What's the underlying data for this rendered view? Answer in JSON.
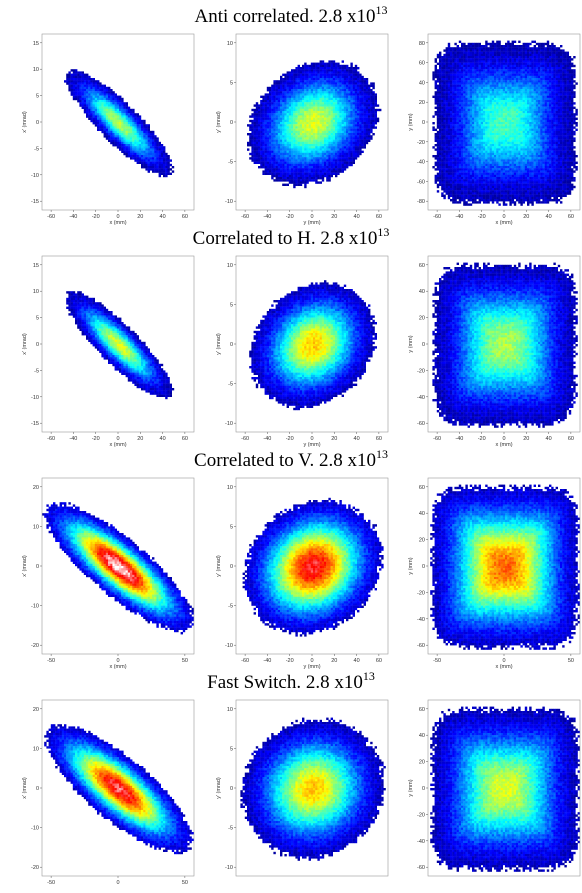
{
  "chart_data": [
    {
      "type": "heatmap",
      "title": "Anti correlated. 2.8 x10",
      "title_exp": "13",
      "panels": [
        {
          "xlabel": "x (mm)",
          "ylabel": "x' (mrad)",
          "xticks": [
            "-60",
            "-40",
            "-20",
            "0",
            "20",
            "40",
            "60"
          ],
          "yticks": [
            "15",
            "10",
            "5",
            "0",
            "-5",
            "-10",
            "-15"
          ],
          "xlim": [
            -65,
            65
          ],
          "ylim": [
            -17,
            17
          ],
          "shape": {
            "cx": 0,
            "cy": 0,
            "ax": 62,
            "ay": 7,
            "angle_deg": -45,
            "square": false
          },
          "peak_level": 0.55
        },
        {
          "xlabel": "y (mm)",
          "ylabel": "y' (mrad)",
          "xticks": [
            "-60",
            "-40",
            "-20",
            "0",
            "20",
            "40",
            "60"
          ],
          "yticks": [
            "10",
            "5",
            "0",
            "-5",
            "-10"
          ],
          "xlim": [
            -70,
            70
          ],
          "ylim": [
            -11,
            11
          ],
          "shape": {
            "cx": 0,
            "cy": 0,
            "ax": 60,
            "ay": 20,
            "angle_deg": 40,
            "square": false
          },
          "peak_level": 0.6
        },
        {
          "xlabel": "x (mm)",
          "ylabel": "y (mm)",
          "xticks": [
            "-60",
            "-40",
            "-20",
            "0",
            "20",
            "40",
            "60"
          ],
          "yticks": [
            "80",
            "60",
            "40",
            "20",
            "0",
            "-20",
            "-40",
            "-60",
            "-80"
          ],
          "xlim": [
            -65,
            65
          ],
          "ylim": [
            -82,
            82
          ],
          "shape": {
            "cx": 0,
            "cy": 0,
            "ax": 60,
            "ay": 62,
            "angle_deg": 0,
            "square": true
          },
          "peak_level": 0.45
        }
      ]
    },
    {
      "type": "heatmap",
      "title": "Correlated to H.  2.8 x10",
      "title_exp": "13",
      "panels": [
        {
          "xlabel": "x (mm)",
          "ylabel": "x' (mrad)",
          "xticks": [
            "-60",
            "-40",
            "-20",
            "0",
            "20",
            "40",
            "60"
          ],
          "yticks": [
            "15",
            "10",
            "5",
            "0",
            "-5",
            "-10",
            "-15"
          ],
          "xlim": [
            -65,
            65
          ],
          "ylim": [
            -17,
            17
          ],
          "shape": {
            "cx": 0,
            "cy": 0,
            "ax": 62,
            "ay": 7,
            "angle_deg": -45,
            "square": false
          },
          "peak_level": 0.6
        },
        {
          "xlabel": "y (mm)",
          "ylabel": "y' (mrad)",
          "xticks": [
            "-60",
            "-40",
            "-20",
            "0",
            "20",
            "40",
            "60"
          ],
          "yticks": [
            "10",
            "5",
            "0",
            "-5",
            "-10"
          ],
          "xlim": [
            -70,
            70
          ],
          "ylim": [
            -11,
            11
          ],
          "shape": {
            "cx": 0,
            "cy": 0,
            "ax": 58,
            "ay": 20,
            "angle_deg": 45,
            "square": false
          },
          "peak_level": 0.68
        },
        {
          "xlabel": "x (mm)",
          "ylabel": "y (mm)",
          "xticks": [
            "-60",
            "-40",
            "-20",
            "0",
            "20",
            "40",
            "60"
          ],
          "yticks": [
            "60",
            "40",
            "20",
            "0",
            "-20",
            "-40",
            "-60"
          ],
          "xlim": [
            -65,
            65
          ],
          "ylim": [
            -68,
            68
          ],
          "shape": {
            "cx": 0,
            "cy": 0,
            "ax": 60,
            "ay": 62,
            "angle_deg": 0,
            "square": true
          },
          "peak_level": 0.55
        }
      ]
    },
    {
      "type": "heatmap",
      "title": "Correlated to V. 2.8 x10",
      "title_exp": "13",
      "panels": [
        {
          "xlabel": "x (mm)",
          "ylabel": "x' (mrad)",
          "xticks": [
            "-50",
            "0",
            "50"
          ],
          "yticks": [
            "20",
            "10",
            "0",
            "-10",
            "-20"
          ],
          "xlim": [
            -90,
            90
          ],
          "ylim": [
            -24,
            24
          ],
          "shape": {
            "cx": 0,
            "cy": 0,
            "ax": 80,
            "ay": 10,
            "angle_deg": -40,
            "square": false
          },
          "peak_level": 1.0
        },
        {
          "xlabel": "y (mm)",
          "ylabel": "y' (mrad)",
          "xticks": [
            "-60",
            "-40",
            "-20",
            "0",
            "20",
            "40",
            "60"
          ],
          "yticks": [
            "10",
            "5",
            "0",
            "-5",
            "-10"
          ],
          "xlim": [
            -70,
            70
          ],
          "ylim": [
            -11,
            11
          ],
          "shape": {
            "cx": 0,
            "cy": 0,
            "ax": 62,
            "ay": 22,
            "angle_deg": 40,
            "square": false
          },
          "peak_level": 0.9
        },
        {
          "xlabel": "x (mm)",
          "ylabel": "y (mm)",
          "xticks": [
            "-50",
            "0",
            "50"
          ],
          "yticks": [
            "60",
            "40",
            "20",
            "0",
            "-20",
            "-40",
            "-60"
          ],
          "xlim": [
            -75,
            75
          ],
          "ylim": [
            -70,
            70
          ],
          "shape": {
            "cx": 0,
            "cy": 0,
            "ax": 62,
            "ay": 62,
            "angle_deg": 0,
            "square": true
          },
          "peak_level": 0.78
        }
      ]
    },
    {
      "type": "heatmap",
      "title": "Fast Switch. 2.8 x10",
      "title_exp": "13",
      "panels": [
        {
          "xlabel": "",
          "ylabel": "x' (mrad)",
          "xticks": [
            "-50",
            "0",
            "50"
          ],
          "yticks": [
            "20",
            "10",
            "0",
            "-10",
            "-20"
          ],
          "xlim": [
            -90,
            90
          ],
          "ylim": [
            -24,
            24
          ],
          "shape": {
            "cx": 0,
            "cy": 0,
            "ax": 78,
            "ay": 11,
            "angle_deg": -40,
            "square": false
          },
          "peak_level": 0.92
        },
        {
          "xlabel": "",
          "ylabel": "y' (mrad)",
          "xticks": [],
          "yticks": [
            "10",
            "5",
            "0",
            "-5",
            "-10"
          ],
          "xlim": [
            -70,
            70
          ],
          "ylim": [
            -11,
            11
          ],
          "shape": {
            "cx": 0,
            "cy": 0,
            "ax": 62,
            "ay": 24,
            "angle_deg": 38,
            "square": false
          },
          "peak_level": 0.68
        },
        {
          "xlabel": "",
          "ylabel": "y (mm)",
          "xticks": [],
          "yticks": [
            "60",
            "40",
            "20",
            "0",
            "-20",
            "-40",
            "-60"
          ],
          "xlim": [
            -75,
            75
          ],
          "ylim": [
            -70,
            70
          ],
          "shape": {
            "cx": 0,
            "cy": 0,
            "ax": 62,
            "ay": 62,
            "angle_deg": 0,
            "square": true
          },
          "peak_level": 0.6
        }
      ]
    }
  ],
  "colors": {
    "colormap": [
      "#00008f",
      "#0000ff",
      "#0080ff",
      "#00ffff",
      "#80ff80",
      "#ffff00",
      "#ff8000",
      "#ff0000",
      "#ffffff"
    ]
  }
}
